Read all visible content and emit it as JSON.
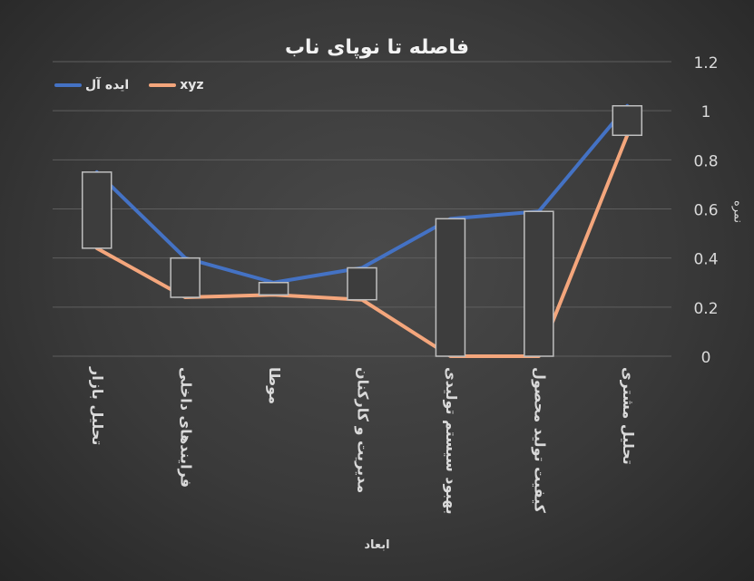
{
  "chart_data": {
    "type": "line",
    "title": "فاصله تا نوپای ناب",
    "xlabel": "ابعاد",
    "ylabel": "نمره",
    "categories": [
      "تحلیل بازار",
      "فرایندهای داخلی",
      "موطا",
      "مدیریت و کارکنان",
      "بهبود سیستم تولیدی",
      "کیفیت تولید محصول",
      "تحلیل مشتری"
    ],
    "series": [
      {
        "name": "ایده آل",
        "color": "#4472c4",
        "values": [
          0.75,
          0.4,
          0.3,
          0.36,
          0.56,
          0.59,
          1.02
        ]
      },
      {
        "name": "xyz",
        "color": "#f4a67c",
        "values": [
          0.44,
          0.24,
          0.25,
          0.23,
          0.0,
          0.0,
          0.9
        ]
      }
    ],
    "ylim": [
      0,
      1.2
    ],
    "yticks": [
      "0",
      "0.2",
      "0.4",
      "0.6",
      "0.8",
      "1",
      "1.2"
    ],
    "grid": true,
    "legend_position": "top-left",
    "y_axis_side": "right",
    "high_low_boxes": true
  }
}
